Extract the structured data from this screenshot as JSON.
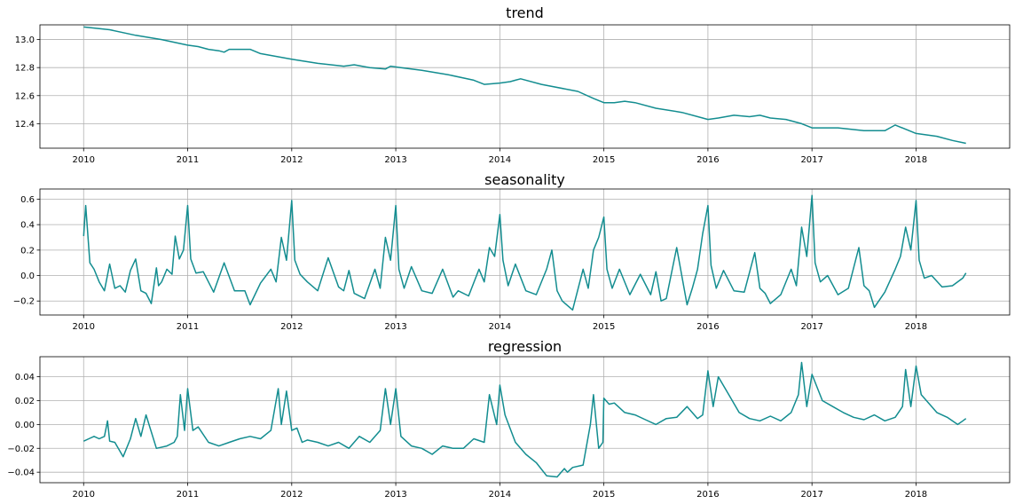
{
  "figure": {
    "background": "#ffffff"
  },
  "chart_data": [
    {
      "type": "line",
      "title": "trend",
      "color": "#138d90",
      "grid": true,
      "xlim": [
        2009.58,
        2018.9
      ],
      "ylim": [
        12.225,
        13.105
      ],
      "xticks": [
        2010,
        2011,
        2012,
        2013,
        2014,
        2015,
        2016,
        2017,
        2018
      ],
      "xtick_labels": [
        "2010",
        "2011",
        "2012",
        "2013",
        "2014",
        "2015",
        "2016",
        "2017",
        "2018"
      ],
      "yticks": [
        12.4,
        12.6,
        12.8,
        13.0
      ],
      "ytick_labels": [
        "12.4",
        "12.6",
        "12.8",
        "13.0"
      ],
      "series": [
        {
          "x": [
            2010.0,
            2010.25,
            2010.5,
            2010.75,
            2011.0,
            2011.1,
            2011.2,
            2011.3,
            2011.35,
            2011.4,
            2011.6,
            2011.7,
            2012.0,
            2012.25,
            2012.5,
            2012.6,
            2012.75,
            2012.9,
            2012.95,
            2013.05,
            2013.25,
            2013.5,
            2013.75,
            2013.85,
            2014.0,
            2014.1,
            2014.15,
            2014.2,
            2014.4,
            2014.75,
            2014.9,
            2015.0,
            2015.1,
            2015.2,
            2015.3,
            2015.5,
            2015.75,
            2015.95,
            2016.0,
            2016.1,
            2016.25,
            2016.4,
            2016.5,
            2016.6,
            2016.75,
            2016.9,
            2017.0,
            2017.25,
            2017.5,
            2017.7,
            2017.75,
            2017.8,
            2018.0,
            2018.2,
            2018.35,
            2018.48
          ],
          "y": [
            13.09,
            13.07,
            13.03,
            13.0,
            12.96,
            12.95,
            12.93,
            12.92,
            12.91,
            12.93,
            12.93,
            12.9,
            12.86,
            12.83,
            12.81,
            12.82,
            12.8,
            12.79,
            12.81,
            12.8,
            12.78,
            12.75,
            12.71,
            12.68,
            12.69,
            12.7,
            12.71,
            12.72,
            12.68,
            12.63,
            12.58,
            12.55,
            12.55,
            12.56,
            12.55,
            12.51,
            12.48,
            12.44,
            12.43,
            12.44,
            12.46,
            12.45,
            12.46,
            12.44,
            12.43,
            12.4,
            12.37,
            12.37,
            12.35,
            12.35,
            12.37,
            12.39,
            12.33,
            12.31,
            12.28,
            12.26
          ]
        }
      ]
    },
    {
      "type": "line",
      "title": "seasonality",
      "color": "#138d90",
      "grid": true,
      "xlim": [
        2009.58,
        2018.9
      ],
      "ylim": [
        -0.31,
        0.68
      ],
      "xticks": [
        2010,
        2011,
        2012,
        2013,
        2014,
        2015,
        2016,
        2017,
        2018
      ],
      "xtick_labels": [
        "2010",
        "2011",
        "2012",
        "2013",
        "2014",
        "2015",
        "2016",
        "2017",
        "2018"
      ],
      "yticks": [
        -0.2,
        0.0,
        0.2,
        0.4,
        0.6
      ],
      "ytick_labels": [
        "−0.2",
        "0.0",
        "0.2",
        "0.4",
        "0.6"
      ],
      "series": [
        {
          "x": [
            2010.0,
            2010.02,
            2010.06,
            2010.1,
            2010.15,
            2010.2,
            2010.25,
            2010.3,
            2010.35,
            2010.4,
            2010.45,
            2010.5,
            2010.55,
            2010.6,
            2010.65,
            2010.7,
            2010.72,
            2010.75,
            2010.8,
            2010.85,
            2010.88,
            2010.92,
            2010.96,
            2011.0,
            2011.03,
            2011.08,
            2011.15,
            2011.25,
            2011.35,
            2011.45,
            2011.55,
            2011.6,
            2011.7,
            2011.8,
            2011.85,
            2011.9,
            2011.95,
            2012.0,
            2012.03,
            2012.08,
            2012.15,
            2012.25,
            2012.35,
            2012.45,
            2012.5,
            2012.55,
            2012.6,
            2012.7,
            2012.8,
            2012.85,
            2012.9,
            2012.95,
            2013.0,
            2013.03,
            2013.08,
            2013.15,
            2013.25,
            2013.35,
            2013.45,
            2013.55,
            2013.6,
            2013.7,
            2013.8,
            2013.85,
            2013.9,
            2013.95,
            2014.0,
            2014.03,
            2014.08,
            2014.15,
            2014.25,
            2014.35,
            2014.45,
            2014.5,
            2014.55,
            2014.6,
            2014.7,
            2014.8,
            2014.85,
            2014.9,
            2014.95,
            2015.0,
            2015.03,
            2015.08,
            2015.15,
            2015.25,
            2015.35,
            2015.45,
            2015.5,
            2015.55,
            2015.6,
            2015.7,
            2015.8,
            2015.85,
            2015.9,
            2015.95,
            2016.0,
            2016.03,
            2016.08,
            2016.15,
            2016.25,
            2016.35,
            2016.45,
            2016.5,
            2016.55,
            2016.6,
            2016.7,
            2016.8,
            2016.85,
            2016.9,
            2016.95,
            2017.0,
            2017.03,
            2017.08,
            2017.15,
            2017.25,
            2017.35,
            2017.45,
            2017.5,
            2017.55,
            2017.6,
            2017.7,
            2017.8,
            2017.85,
            2017.9,
            2017.95,
            2018.0,
            2018.03,
            2018.08,
            2018.15,
            2018.25,
            2018.35,
            2018.45,
            2018.48
          ],
          "y": [
            0.31,
            0.55,
            0.1,
            0.05,
            -0.05,
            -0.12,
            0.09,
            -0.1,
            -0.08,
            -0.13,
            0.04,
            0.13,
            -0.12,
            -0.14,
            -0.22,
            0.06,
            -0.08,
            -0.05,
            0.05,
            0.01,
            0.31,
            0.13,
            0.2,
            0.55,
            0.13,
            0.02,
            0.03,
            -0.13,
            0.1,
            -0.12,
            -0.12,
            -0.23,
            -0.06,
            0.05,
            -0.05,
            0.3,
            0.12,
            0.59,
            0.12,
            0.01,
            -0.05,
            -0.12,
            0.14,
            -0.09,
            -0.12,
            0.04,
            -0.14,
            -0.18,
            0.05,
            -0.1,
            0.3,
            0.12,
            0.55,
            0.05,
            -0.1,
            0.07,
            -0.12,
            -0.14,
            0.05,
            -0.17,
            -0.12,
            -0.16,
            0.05,
            -0.05,
            0.22,
            0.15,
            0.48,
            0.12,
            -0.08,
            0.09,
            -0.12,
            -0.15,
            0.05,
            0.2,
            -0.12,
            -0.2,
            -0.27,
            0.05,
            -0.1,
            0.2,
            0.3,
            0.46,
            0.05,
            -0.1,
            0.05,
            -0.15,
            0.01,
            -0.15,
            0.03,
            -0.2,
            -0.18,
            0.22,
            -0.23,
            -0.1,
            0.05,
            0.33,
            0.55,
            0.08,
            -0.1,
            0.04,
            -0.12,
            -0.13,
            0.18,
            -0.1,
            -0.14,
            -0.22,
            -0.15,
            0.05,
            -0.08,
            0.38,
            0.15,
            0.63,
            0.1,
            -0.05,
            0.0,
            -0.15,
            -0.1,
            0.22,
            -0.08,
            -0.12,
            -0.25,
            -0.13,
            0.05,
            0.15,
            0.38,
            0.2,
            0.59,
            0.12,
            -0.02,
            0.0,
            -0.09,
            -0.08,
            -0.02,
            0.02
          ]
        }
      ]
    },
    {
      "type": "line",
      "title": "regression",
      "color": "#138d90",
      "grid": true,
      "xlim": [
        2009.58,
        2018.9
      ],
      "ylim": [
        -0.0488,
        0.0568
      ],
      "xticks": [
        2010,
        2011,
        2012,
        2013,
        2014,
        2015,
        2016,
        2017,
        2018
      ],
      "xtick_labels": [
        "2010",
        "2011",
        "2012",
        "2013",
        "2014",
        "2015",
        "2016",
        "2017",
        "2018"
      ],
      "yticks": [
        -0.04,
        -0.02,
        0.0,
        0.02,
        0.04
      ],
      "ytick_labels": [
        "−0.04",
        "−0.02",
        "0.00",
        "0.02",
        "0.04"
      ],
      "series": [
        {
          "x": [
            2010.0,
            2010.05,
            2010.1,
            2010.15,
            2010.2,
            2010.23,
            2010.25,
            2010.3,
            2010.38,
            2010.45,
            2010.5,
            2010.55,
            2010.6,
            2010.7,
            2010.8,
            2010.87,
            2010.9,
            2010.93,
            2010.97,
            2011.0,
            2011.05,
            2011.1,
            2011.2,
            2011.3,
            2011.4,
            2011.5,
            2011.6,
            2011.7,
            2011.8,
            2011.87,
            2011.9,
            2011.95,
            2012.0,
            2012.05,
            2012.1,
            2012.15,
            2012.25,
            2012.35,
            2012.45,
            2012.55,
            2012.65,
            2012.75,
            2012.85,
            2012.9,
            2012.95,
            2013.0,
            2013.05,
            2013.15,
            2013.25,
            2013.35,
            2013.45,
            2013.55,
            2013.65,
            2013.75,
            2013.85,
            2013.9,
            2013.97,
            2014.0,
            2014.05,
            2014.15,
            2014.25,
            2014.35,
            2014.45,
            2014.55,
            2014.62,
            2014.65,
            2014.7,
            2014.8,
            2014.87,
            2014.9,
            2014.95,
            2014.99,
            2015.0,
            2015.05,
            2015.1,
            2015.2,
            2015.3,
            2015.4,
            2015.5,
            2015.6,
            2015.7,
            2015.8,
            2015.9,
            2015.95,
            2016.0,
            2016.05,
            2016.1,
            2016.2,
            2016.3,
            2016.4,
            2016.5,
            2016.6,
            2016.7,
            2016.8,
            2016.87,
            2016.9,
            2016.95,
            2017.0,
            2017.1,
            2017.2,
            2017.3,
            2017.4,
            2017.5,
            2017.6,
            2017.7,
            2017.8,
            2017.87,
            2017.9,
            2017.95,
            2018.0,
            2018.05,
            2018.1,
            2018.2,
            2018.3,
            2018.4,
            2018.45,
            2018.48
          ],
          "y": [
            -0.014,
            -0.012,
            -0.01,
            -0.012,
            -0.01,
            0.003,
            -0.014,
            -0.015,
            -0.027,
            -0.012,
            0.005,
            -0.01,
            0.008,
            -0.02,
            -0.018,
            -0.015,
            -0.01,
            0.025,
            -0.005,
            0.03,
            -0.005,
            -0.002,
            -0.015,
            -0.018,
            -0.015,
            -0.012,
            -0.01,
            -0.012,
            -0.005,
            0.03,
            0.0,
            0.028,
            -0.005,
            -0.003,
            -0.015,
            -0.013,
            -0.015,
            -0.018,
            -0.015,
            -0.02,
            -0.01,
            -0.015,
            -0.005,
            0.03,
            0.0,
            0.03,
            -0.01,
            -0.018,
            -0.02,
            -0.025,
            -0.018,
            -0.02,
            -0.02,
            -0.012,
            -0.015,
            0.025,
            0.0,
            0.033,
            0.008,
            -0.015,
            -0.025,
            -0.032,
            -0.043,
            -0.044,
            -0.037,
            -0.04,
            -0.036,
            -0.034,
            0.0,
            0.025,
            -0.02,
            -0.015,
            0.022,
            0.017,
            0.018,
            0.01,
            0.008,
            0.004,
            0.0,
            0.005,
            0.006,
            0.015,
            0.005,
            0.008,
            0.045,
            0.015,
            0.04,
            0.025,
            0.01,
            0.005,
            0.003,
            0.007,
            0.003,
            0.01,
            0.025,
            0.052,
            0.015,
            0.042,
            0.02,
            0.015,
            0.01,
            0.006,
            0.004,
            0.008,
            0.003,
            0.006,
            0.015,
            0.046,
            0.015,
            0.049,
            0.025,
            0.02,
            0.01,
            0.006,
            0.0,
            0.003,
            0.005
          ]
        }
      ]
    }
  ]
}
